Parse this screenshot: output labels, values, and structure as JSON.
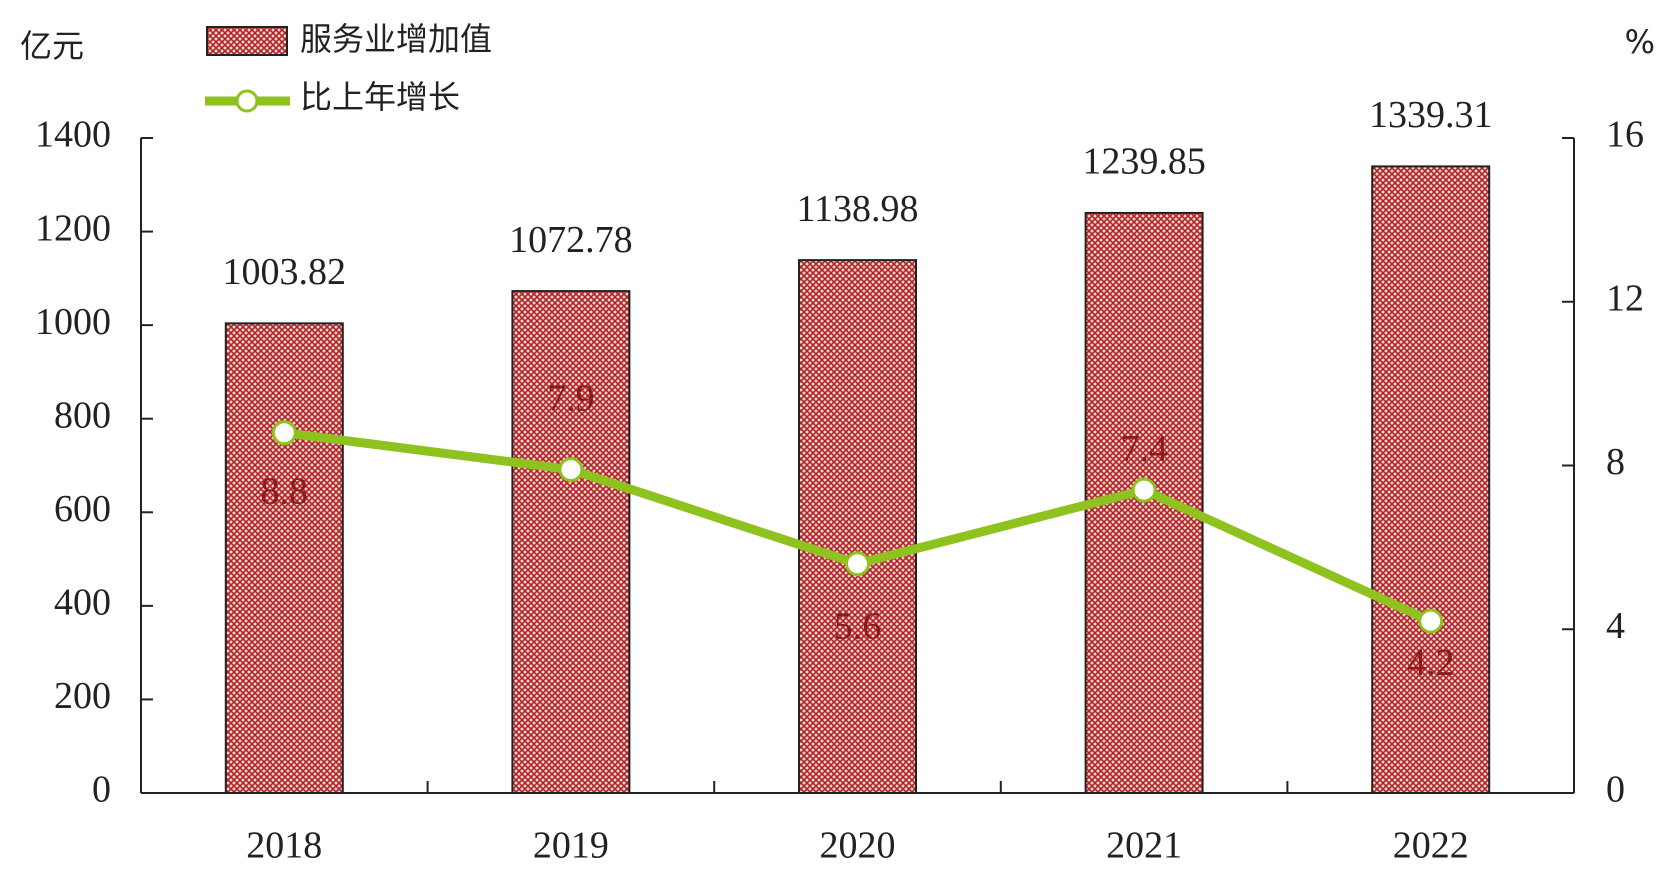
{
  "chart_data": {
    "type": "bar-line",
    "y_unit": "亿元",
    "y2_unit": "%",
    "categories": [
      "2018",
      "2019",
      "2020",
      "2021",
      "2022"
    ],
    "series": [
      {
        "name": "服务业增加值",
        "type": "bar",
        "color": "#b22222",
        "values": [
          1003.82,
          1072.78,
          1138.98,
          1239.85,
          1339.31
        ]
      },
      {
        "name": "比上年增长",
        "type": "line",
        "axis": "y2",
        "color": "#8dc21f",
        "values": [
          8.8,
          7.9,
          5.6,
          7.4,
          4.2
        ]
      }
    ],
    "ylim": [
      0,
      1400
    ],
    "yticks": [
      0,
      200,
      400,
      600,
      800,
      1000,
      1200,
      1400
    ],
    "y2lim": [
      0,
      16
    ],
    "y2ticks": [
      0,
      4,
      8,
      12,
      16
    ]
  }
}
